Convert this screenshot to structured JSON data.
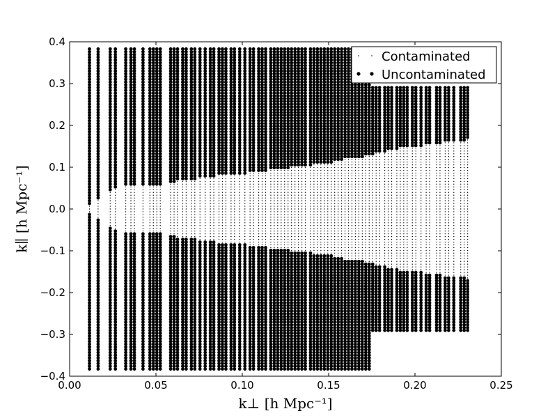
{
  "chart_data": {
    "type": "scatter",
    "xlabel": "k⊥ [h Mpc⁻¹]",
    "ylabel": "k∥ [h Mpc⁻¹]",
    "xlim": [
      0.0,
      0.25
    ],
    "ylim": [
      -0.4,
      0.4
    ],
    "x_ticks": [
      "0.00",
      "0.05",
      "0.10",
      "0.15",
      "0.20",
      "0.25"
    ],
    "y_ticks": [
      "−0.4",
      "−0.3",
      "−0.2",
      "−0.1",
      "0.0",
      "0.1",
      "0.2",
      "0.3",
      "0.4"
    ],
    "grid": false,
    "legend_position": "top-right",
    "series": [
      {
        "name": "Contaminated",
        "marker": "small-dot",
        "color": "#000000"
      },
      {
        "name": "Uncontaminated",
        "marker": "large-dot",
        "color": "#000000"
      }
    ],
    "k_perp_columns": [
      0.0115,
      0.0165,
      0.0235,
      0.0265,
      0.0325,
      0.0355,
      0.0375,
      0.0425,
      0.0465,
      0.0485,
      0.0505,
      0.0525,
      0.0585,
      0.0605,
      0.0625,
      0.0655,
      0.0675,
      0.0705,
      0.0725,
      0.0755,
      0.0785,
      0.0815,
      0.0835,
      0.0865,
      0.0885,
      0.0905,
      0.0935,
      0.0955,
      0.0985,
      0.1015,
      0.1045,
      0.1065,
      0.1095,
      0.1115,
      0.1135,
      0.1165,
      0.1185,
      0.1205,
      0.1225,
      0.1245,
      0.1265,
      0.1285,
      0.1305,
      0.1325,
      0.1345,
      0.1365,
      0.1395,
      0.1415,
      0.1435,
      0.1455,
      0.1475,
      0.1495,
      0.1515,
      0.1535,
      0.1555,
      0.1575,
      0.1595,
      0.1615,
      0.1635,
      0.1655,
      0.1675,
      0.1695,
      0.1715,
      0.1735,
      0.1755,
      0.1775,
      0.1795,
      0.1825,
      0.1845,
      0.1865,
      0.1895,
      0.1915,
      0.1935,
      0.1955,
      0.1985,
      0.2005,
      0.2035,
      0.2065,
      0.2085,
      0.2125,
      0.2145,
      0.2175,
      0.2195,
      0.2225,
      0.2265,
      0.2285,
      0.2305
    ],
    "k_par_max_short": 0.295,
    "k_par_max_long": 0.385,
    "k_par_step": 0.0066,
    "long_column_cutoff_k_perp": 0.175,
    "horizon_boundary_k_par": [
      [
        0.01,
        0.005
      ],
      [
        0.02,
        0.035
      ],
      [
        0.03,
        0.055
      ],
      [
        0.04,
        0.055
      ],
      [
        0.05,
        0.055
      ],
      [
        0.06,
        0.065
      ],
      [
        0.07,
        0.07
      ],
      [
        0.08,
        0.075
      ],
      [
        0.09,
        0.085
      ],
      [
        0.1,
        0.085
      ],
      [
        0.11,
        0.09
      ],
      [
        0.12,
        0.095
      ],
      [
        0.13,
        0.1
      ],
      [
        0.14,
        0.105
      ],
      [
        0.15,
        0.11
      ],
      [
        0.16,
        0.12
      ],
      [
        0.17,
        0.125
      ],
      [
        0.18,
        0.135
      ],
      [
        0.19,
        0.145
      ],
      [
        0.2,
        0.15
      ],
      [
        0.21,
        0.155
      ],
      [
        0.22,
        0.16
      ],
      [
        0.23,
        0.165
      ]
    ]
  },
  "legend": {
    "contaminated_label": "Contaminated",
    "uncontaminated_label": "Uncontaminated"
  }
}
